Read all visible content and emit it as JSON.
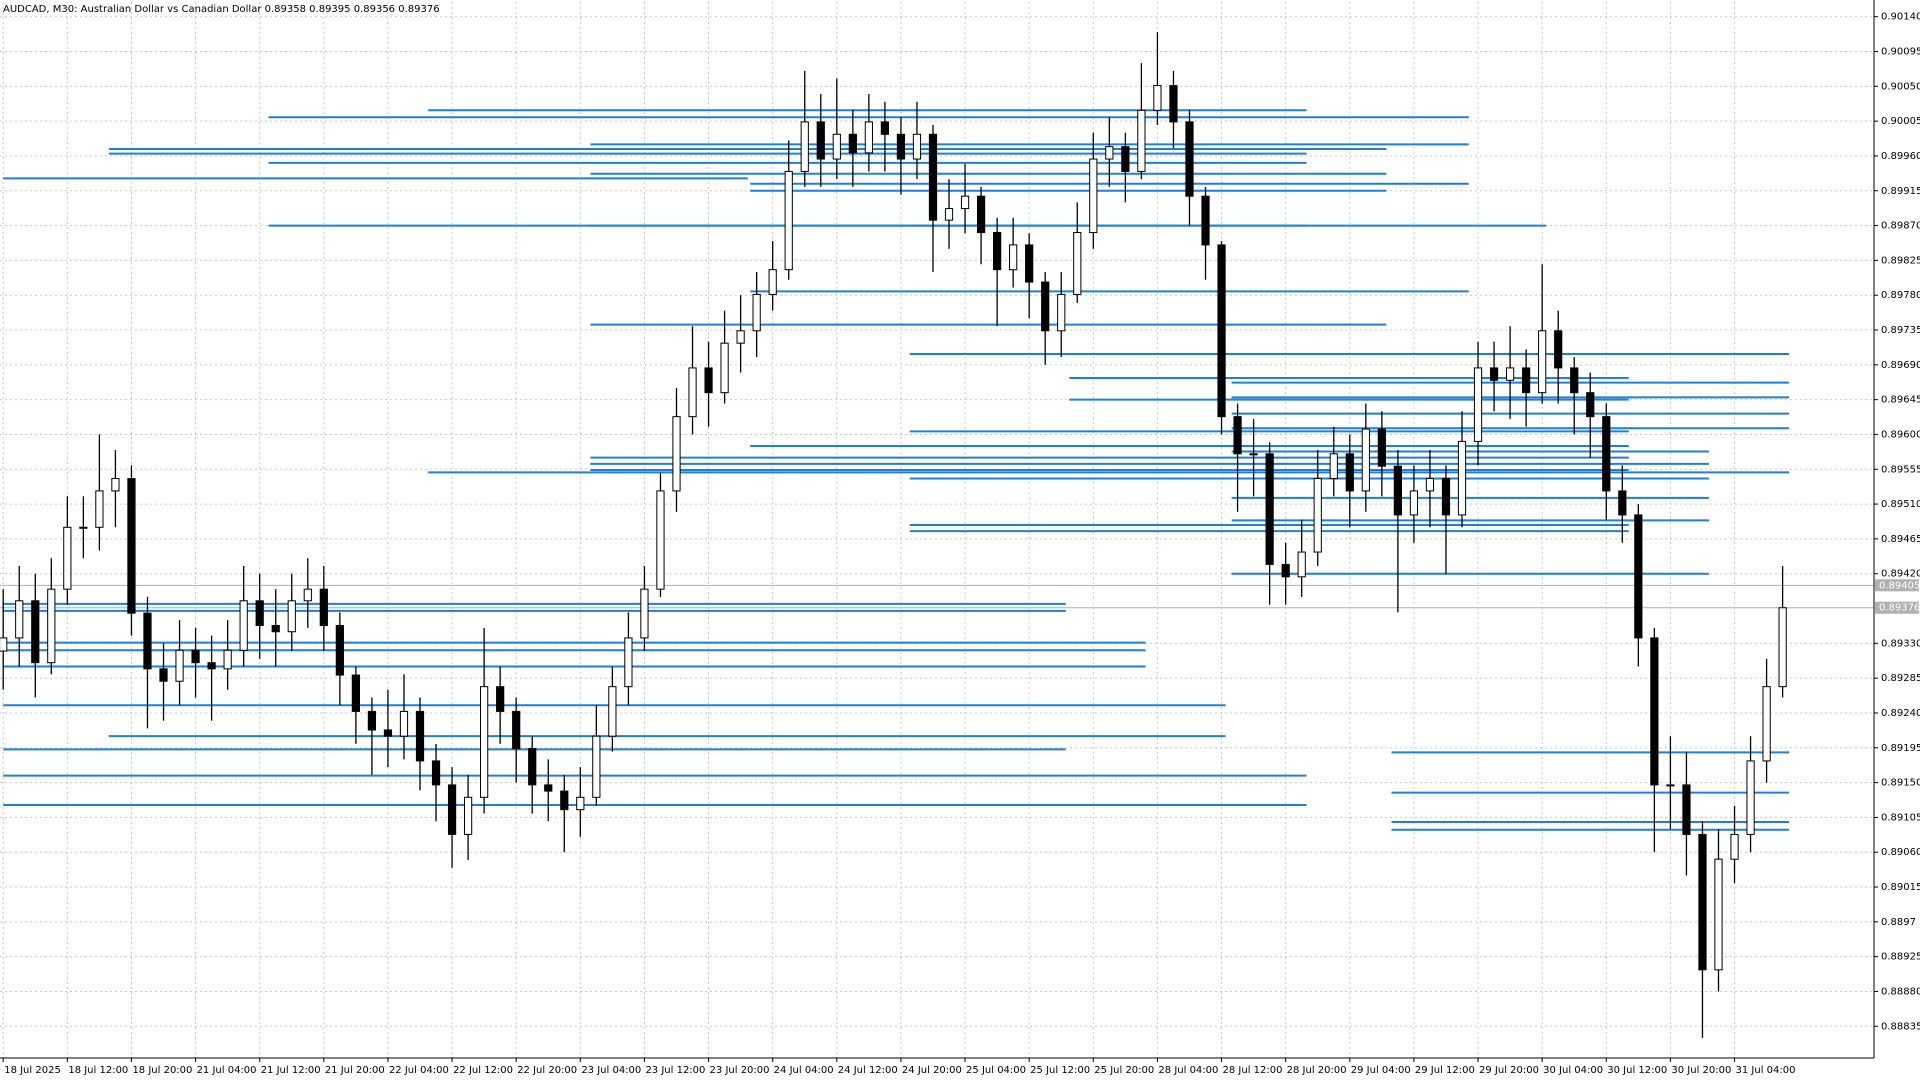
{
  "chart_data": {
    "type": "candlestick",
    "title": "AUDCAD, M30:  Australian Dollar vs Canadian Dollar  0.89358 0.89395 0.89356 0.89376",
    "ylim": [
      0.88794,
      0.90159
    ],
    "xlim": [
      -0.2,
      116.7
    ],
    "grid": true,
    "color": "#000000",
    "level_color": "#1e7fd8",
    "yticks": [
      0.88835,
      {
        "value": 0.8888,
        "label": "0.88880"
      },
      0.88925,
      0.8897,
      0.89015,
      {
        "value": 0.8906,
        "label": "0.89060"
      },
      0.89105,
      {
        "value": 0.8915,
        "label": "0.89150"
      },
      0.89195,
      {
        "value": 0.8924,
        "label": "0.89240"
      },
      0.89285,
      {
        "value": 0.8933,
        "label": "0.89330"
      },
      {
        "value": 0.8942,
        "label": "0.89420"
      },
      0.89465,
      {
        "value": 0.8951,
        "label": "0.89510"
      },
      0.89555,
      {
        "value": 0.896,
        "label": "0.89600"
      },
      0.89645,
      {
        "value": 0.8969,
        "label": "0.89690"
      },
      0.89735,
      {
        "value": 0.8978,
        "label": "0.89780"
      },
      0.89825,
      {
        "value": 0.8987,
        "label": "0.89870"
      },
      0.89915,
      {
        "value": 0.8996,
        "label": "0.89960"
      },
      0.90005,
      {
        "value": 0.9005,
        "label": "0.90050"
      },
      0.90095,
      {
        "value": 0.9014,
        "label": "0.90140"
      }
    ],
    "price_lines": [
      0.89405,
      0.89376
    ],
    "xticks": [
      {
        "value": 0,
        "label": "18 Jul 2025"
      },
      {
        "value": 4,
        "label": "18 Jul 12:00"
      },
      {
        "value": 8,
        "label": "18 Jul 20:00"
      },
      {
        "value": 12,
        "label": "21 Jul 04:00"
      },
      {
        "value": 16,
        "label": "21 Jul 12:00"
      },
      {
        "value": 20,
        "label": "21 Jul 20:00"
      },
      {
        "value": 24,
        "label": "22 Jul 04:00"
      },
      {
        "value": 28,
        "label": "22 Jul 12:00"
      },
      {
        "value": 32,
        "label": "22 Jul 20:00"
      },
      {
        "value": 36,
        "label": "23 Jul 04:00"
      },
      {
        "value": 40,
        "label": "23 Jul 12:00"
      },
      {
        "value": 44,
        "label": "23 Jul 20:00"
      },
      {
        "value": 48,
        "label": "24 Jul 04:00"
      },
      {
        "value": 52,
        "label": "24 Jul 12:00"
      },
      {
        "value": 56,
        "label": "24 Jul 20:00"
      },
      {
        "value": 60,
        "label": "25 Jul 04:00"
      },
      {
        "value": 64,
        "label": "25 Jul 12:00"
      },
      {
        "value": 68,
        "label": "25 Jul 20:00"
      },
      {
        "value": 72,
        "label": "28 Jul 04:00"
      },
      {
        "value": 76,
        "label": "28 Jul 12:00"
      },
      {
        "value": 80,
        "label": "28 Jul 20:00"
      },
      {
        "value": 84,
        "label": "29 Jul 04:00"
      },
      {
        "value": 88,
        "label": "29 Jul 12:00"
      },
      {
        "value": 92,
        "label": "29 Jul 20:00"
      },
      {
        "value": 96,
        "label": "30 Jul 04:00"
      },
      {
        "value": 100,
        "label": "30 Jul 12:00"
      },
      {
        "value": 104,
        "label": "30 Jul 20:00"
      },
      {
        "value": 108,
        "label": "31 Jul 04:00"
      }
    ],
    "ohlc": [
      [
        0.8932,
        0.894,
        0.8927,
        0.89337
      ],
      [
        0.89337,
        0.8943,
        0.893,
        0.89385
      ],
      [
        0.89385,
        0.8942,
        0.8926,
        0.89305
      ],
      [
        0.89305,
        0.8944,
        0.8929,
        0.894
      ],
      [
        0.894,
        0.8952,
        0.8938,
        0.8948
      ],
      [
        0.8948,
        0.8952,
        0.8944,
        0.8948
      ],
      [
        0.8948,
        0.896,
        0.8945,
        0.89527
      ],
      [
        0.89527,
        0.8958,
        0.8948,
        0.89543
      ],
      [
        0.89543,
        0.8956,
        0.8934,
        0.89369
      ],
      [
        0.89369,
        0.8939,
        0.8922,
        0.89297
      ],
      [
        0.89297,
        0.8933,
        0.8923,
        0.89281
      ],
      [
        0.89281,
        0.8936,
        0.8925,
        0.89321
      ],
      [
        0.89321,
        0.8935,
        0.8926,
        0.89305
      ],
      [
        0.89305,
        0.8934,
        0.8923,
        0.89297
      ],
      [
        0.89297,
        0.8936,
        0.8927,
        0.89321
      ],
      [
        0.89321,
        0.8943,
        0.893,
        0.89385
      ],
      [
        0.89385,
        0.8942,
        0.8931,
        0.89353
      ],
      [
        0.89353,
        0.894,
        0.893,
        0.89345
      ],
      [
        0.89345,
        0.8942,
        0.8932,
        0.89385
      ],
      [
        0.89385,
        0.8944,
        0.8935,
        0.894
      ],
      [
        0.894,
        0.8943,
        0.8932,
        0.89353
      ],
      [
        0.89353,
        0.8937,
        0.8925,
        0.89289
      ],
      [
        0.89289,
        0.893,
        0.892,
        0.89242
      ],
      [
        0.89242,
        0.8926,
        0.8916,
        0.89218
      ],
      [
        0.89218,
        0.8927,
        0.8917,
        0.8921
      ],
      [
        0.8921,
        0.8929,
        0.8918,
        0.89242
      ],
      [
        0.89242,
        0.8926,
        0.8914,
        0.89178
      ],
      [
        0.89178,
        0.892,
        0.891,
        0.89147
      ],
      [
        0.89147,
        0.8917,
        0.8904,
        0.89083
      ],
      [
        0.89083,
        0.8916,
        0.8905,
        0.89131
      ],
      [
        0.89131,
        0.8935,
        0.8911,
        0.89274
      ],
      [
        0.89274,
        0.893,
        0.892,
        0.89242
      ],
      [
        0.89242,
        0.8926,
        0.8915,
        0.89194
      ],
      [
        0.89194,
        0.8921,
        0.8911,
        0.89147
      ],
      [
        0.89147,
        0.8918,
        0.891,
        0.89139
      ],
      [
        0.89139,
        0.8916,
        0.8906,
        0.89115
      ],
      [
        0.89115,
        0.8917,
        0.8908,
        0.89131
      ],
      [
        0.89131,
        0.8925,
        0.8912,
        0.8921
      ],
      [
        0.8921,
        0.893,
        0.8919,
        0.89274
      ],
      [
        0.89274,
        0.8937,
        0.8925,
        0.89337
      ],
      [
        0.89337,
        0.8943,
        0.8932,
        0.894
      ],
      [
        0.894,
        0.8955,
        0.8939,
        0.89527
      ],
      [
        0.89527,
        0.8966,
        0.895,
        0.89623
      ],
      [
        0.89623,
        0.8974,
        0.896,
        0.89686
      ],
      [
        0.89686,
        0.8972,
        0.8961,
        0.89654
      ],
      [
        0.89654,
        0.8976,
        0.8964,
        0.89718
      ],
      [
        0.89718,
        0.8978,
        0.8968,
        0.89734
      ],
      [
        0.89734,
        0.8981,
        0.897,
        0.89781
      ],
      [
        0.89781,
        0.8985,
        0.8976,
        0.89813
      ],
      [
        0.89813,
        0.8998,
        0.898,
        0.8994
      ],
      [
        0.8994,
        0.9007,
        0.8992,
        0.90004
      ],
      [
        0.90004,
        0.9004,
        0.8992,
        0.89956
      ],
      [
        0.89956,
        0.9006,
        0.8993,
        0.89988
      ],
      [
        0.89988,
        0.9002,
        0.8992,
        0.89964
      ],
      [
        0.89964,
        0.9004,
        0.8994,
        0.90004
      ],
      [
        0.90004,
        0.9003,
        0.8994,
        0.89988
      ],
      [
        0.89988,
        0.9001,
        0.8991,
        0.89956
      ],
      [
        0.89956,
        0.9003,
        0.8993,
        0.89988
      ],
      [
        0.89988,
        0.9,
        0.8981,
        0.89877
      ],
      [
        0.89877,
        0.8993,
        0.8984,
        0.89892
      ],
      [
        0.89892,
        0.8995,
        0.8986,
        0.89908
      ],
      [
        0.89908,
        0.8992,
        0.8982,
        0.89861
      ],
      [
        0.89861,
        0.8988,
        0.8974,
        0.89813
      ],
      [
        0.89813,
        0.8988,
        0.8979,
        0.89845
      ],
      [
        0.89845,
        0.8986,
        0.8975,
        0.89797
      ],
      [
        0.89797,
        0.8981,
        0.8969,
        0.89734
      ],
      [
        0.89734,
        0.8981,
        0.897,
        0.89781
      ],
      [
        0.89781,
        0.899,
        0.8977,
        0.89861
      ],
      [
        0.89861,
        0.8999,
        0.8984,
        0.89956
      ],
      [
        0.89956,
        0.9001,
        0.8992,
        0.89972
      ],
      [
        0.89972,
        0.8999,
        0.899,
        0.8994
      ],
      [
        0.8994,
        0.9008,
        0.8993,
        0.90019
      ],
      [
        0.90019,
        0.9012,
        0.9,
        0.90051
      ],
      [
        0.90051,
        0.9007,
        0.8997,
        0.90004
      ],
      [
        0.90004,
        0.9002,
        0.8987,
        0.89908
      ],
      [
        0.89908,
        0.8992,
        0.898,
        0.89845
      ],
      [
        0.89845,
        0.8985,
        0.896,
        0.89623
      ],
      [
        0.89623,
        0.8964,
        0.895,
        0.89575
      ],
      [
        0.89575,
        0.8962,
        0.8952,
        0.89575
      ],
      [
        0.89575,
        0.8959,
        0.8938,
        0.89432
      ],
      [
        0.89432,
        0.8946,
        0.8938,
        0.89416
      ],
      [
        0.89416,
        0.8949,
        0.8939,
        0.89448
      ],
      [
        0.89448,
        0.8958,
        0.8943,
        0.89543
      ],
      [
        0.89543,
        0.8961,
        0.8952,
        0.89575
      ],
      [
        0.89575,
        0.896,
        0.8948,
        0.89527
      ],
      [
        0.89527,
        0.8964,
        0.895,
        0.89607
      ],
      [
        0.89607,
        0.8963,
        0.8952,
        0.89559
      ],
      [
        0.89559,
        0.8958,
        0.8937,
        0.89496
      ],
      [
        0.89496,
        0.8956,
        0.8946,
        0.89527
      ],
      [
        0.89527,
        0.8958,
        0.8948,
        0.89543
      ],
      [
        0.89543,
        0.8956,
        0.8942,
        0.89496
      ],
      [
        0.89496,
        0.8963,
        0.8948,
        0.89591
      ],
      [
        0.89591,
        0.8972,
        0.8956,
        0.89686
      ],
      [
        0.89686,
        0.8972,
        0.8963,
        0.8967
      ],
      [
        0.8967,
        0.8974,
        0.8962,
        0.89686
      ],
      [
        0.89686,
        0.8971,
        0.8961,
        0.89654
      ],
      [
        0.89654,
        0.8982,
        0.8964,
        0.89734
      ],
      [
        0.89734,
        0.8976,
        0.8964,
        0.89686
      ],
      [
        0.89686,
        0.897,
        0.896,
        0.89654
      ],
      [
        0.89654,
        0.8968,
        0.8957,
        0.89623
      ],
      [
        0.89623,
        0.8964,
        0.8949,
        0.89527
      ],
      [
        0.89527,
        0.8956,
        0.8946,
        0.89496
      ],
      [
        0.89496,
        0.8951,
        0.893,
        0.89337
      ],
      [
        0.89337,
        0.8935,
        0.8906,
        0.89147
      ],
      [
        0.89147,
        0.8921,
        0.8909,
        0.89147
      ],
      [
        0.89147,
        0.8919,
        0.8903,
        0.89083
      ],
      [
        0.89083,
        0.891,
        0.8882,
        0.88908
      ],
      [
        0.88908,
        0.8909,
        0.8888,
        0.89051
      ],
      [
        0.89051,
        0.8912,
        0.8902,
        0.89083
      ],
      [
        0.89083,
        0.8921,
        0.8906,
        0.89178
      ],
      [
        0.89178,
        0.8931,
        0.8915,
        0.89274
      ],
      [
        0.89274,
        0.8943,
        0.8926,
        0.89376
      ]
    ],
    "levels": [
      [
        0.89931,
        0,
        46.44
      ],
      [
        0.8987,
        16.55,
        81.3
      ],
      [
        0.8987,
        36.63,
        96.25
      ],
      [
        0.9001,
        16.55,
        91.42
      ],
      [
        0.90019,
        26.51,
        81.3
      ],
      [
        0.89969,
        6.59,
        86.28
      ],
      [
        0.89963,
        6.59,
        81.3
      ],
      [
        0.89951,
        16.55,
        81.3
      ],
      [
        0.89975,
        36.63,
        91.42
      ],
      [
        0.89937,
        36.63,
        86.28
      ],
      [
        0.89924,
        46.6,
        91.42
      ],
      [
        0.89915,
        46.6,
        86.28
      ],
      [
        0.89785,
        46.6,
        91.42
      ],
      [
        0.89742,
        36.63,
        86.28
      ],
      [
        0.89704,
        56.55,
        111.4
      ],
      [
        0.89673,
        66.5,
        101.4
      ],
      [
        0.89667,
        76.63,
        111.4
      ],
      [
        0.89648,
        76.63,
        111.4
      ],
      [
        0.89645,
        66.5,
        101.4
      ],
      [
        0.89627,
        76.63,
        111.4
      ],
      [
        0.89608,
        76.63,
        111.4
      ],
      [
        0.89604,
        56.55,
        101.4
      ],
      [
        0.89585,
        46.6,
        101.4
      ],
      [
        0.89578,
        76.63,
        106.4
      ],
      [
        0.8957,
        36.63,
        101.4
      ],
      [
        0.89562,
        36.63,
        106.4
      ],
      [
        0.89554,
        36.63,
        101.4
      ],
      [
        0.89551,
        26.51,
        111.4
      ],
      [
        0.89543,
        56.55,
        106.4
      ],
      [
        0.89518,
        76.63,
        106.4
      ],
      [
        0.89489,
        76.63,
        106.4
      ],
      [
        0.89483,
        56.55,
        101.4
      ],
      [
        0.89475,
        56.55,
        101.4
      ],
      [
        0.8942,
        76.63,
        106.4
      ],
      [
        0.89381,
        0,
        66.28
      ],
      [
        0.89372,
        0,
        66.28
      ],
      [
        0.89331,
        0,
        71.26
      ],
      [
        0.89321,
        0,
        71.26
      ],
      [
        0.893,
        0,
        71.26
      ],
      [
        0.8925,
        0,
        76.25
      ],
      [
        0.8921,
        6.59,
        76.25
      ],
      [
        0.89193,
        0,
        66.28
      ],
      [
        0.89189,
        86.6,
        111.4
      ],
      [
        0.89159,
        0,
        81.3
      ],
      [
        0.89137,
        86.6,
        111.4
      ],
      [
        0.89121,
        0,
        81.3
      ],
      [
        0.89099,
        86.6,
        111.4
      ],
      [
        0.89089,
        86.6,
        111.4
      ]
    ]
  }
}
